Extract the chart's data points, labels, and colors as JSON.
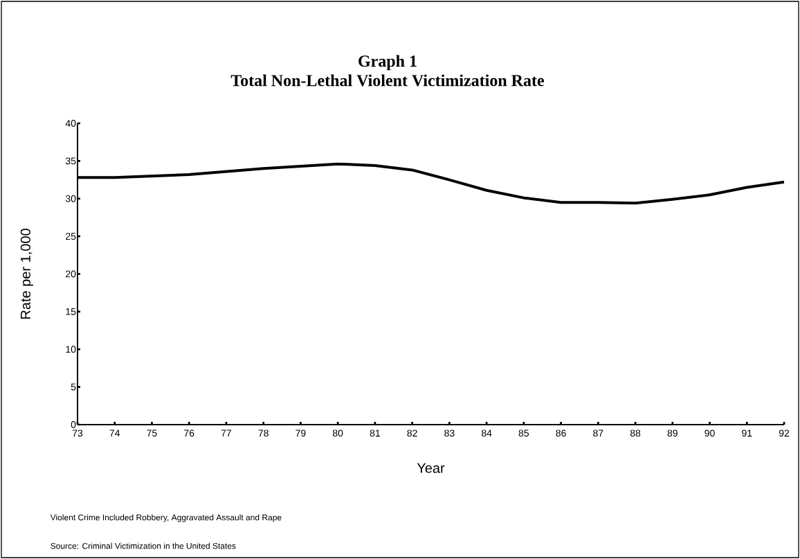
{
  "chart_data": {
    "type": "line",
    "title": "Graph 1",
    "subtitle": "Total Non-Lethal Violent Victimization Rate",
    "xlabel": "Year",
    "ylabel": "Rate per 1,000",
    "categories": [
      "73",
      "74",
      "75",
      "76",
      "77",
      "78",
      "79",
      "80",
      "81",
      "82",
      "83",
      "84",
      "85",
      "86",
      "87",
      "88",
      "89",
      "90",
      "91",
      "92"
    ],
    "series": [
      {
        "color": "#000000",
        "values": [
          32.8,
          32.8,
          33.0,
          33.2,
          33.6,
          34.0,
          34.3,
          34.6,
          34.4,
          33.8,
          32.5,
          31.1,
          30.1,
          29.5,
          29.5,
          29.4,
          29.9,
          30.5,
          31.5,
          32.2
        ]
      }
    ],
    "ylim": [
      0,
      40
    ],
    "yticks": [
      0,
      5,
      10,
      15,
      20,
      25,
      30,
      35,
      40
    ],
    "grid": false,
    "annotations": [
      "Violent Crime Included Robbery, Aggravated Assault and Rape",
      "Source: Criminal Victimization in the United States"
    ]
  }
}
